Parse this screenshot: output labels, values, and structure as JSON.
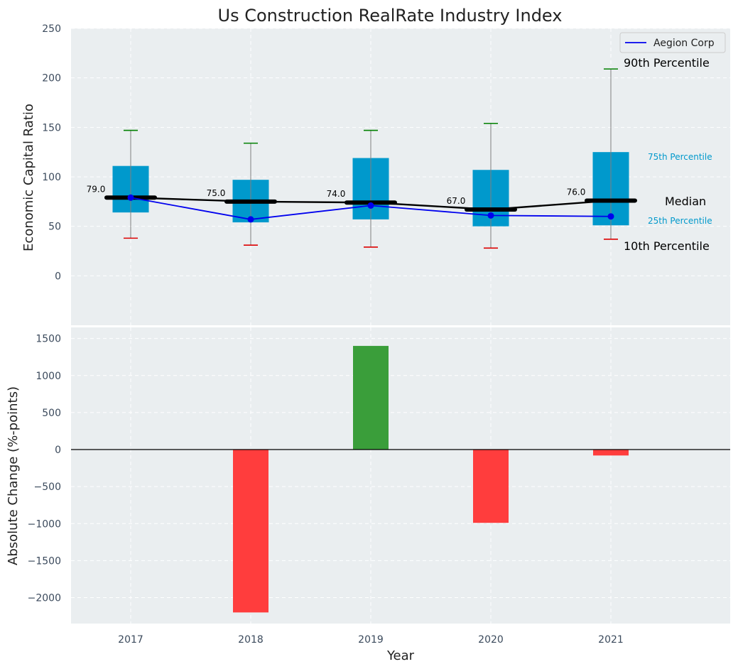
{
  "chart_data": [
    {
      "type": "box",
      "title": "Us Construction RealRate Industry Index",
      "ylabel": "Economic Capital Ratio",
      "ylim": [
        -50,
        250
      ],
      "yticks": [
        0,
        50,
        100,
        150,
        200,
        250
      ],
      "categories": [
        "2017",
        "2018",
        "2019",
        "2020",
        "2021"
      ],
      "boxes": [
        {
          "p10": 38,
          "p25": 64,
          "median": 79,
          "p75": 111,
          "p90": 147
        },
        {
          "p10": 31,
          "p25": 54,
          "median": 75,
          "p75": 97,
          "p90": 134
        },
        {
          "p10": 29,
          "p25": 57,
          "median": 74,
          "p75": 119,
          "p90": 147
        },
        {
          "p10": 28,
          "p25": 50,
          "median": 67,
          "p75": 107,
          "p90": 154
        },
        {
          "p10": 37,
          "p25": 51,
          "median": 76,
          "p75": 125,
          "p90": 209
        }
      ],
      "median_labels": [
        "79.0",
        "75.0",
        "74.0",
        "67.0",
        "76.0"
      ],
      "series": [
        {
          "name": "Aegion Corp",
          "values": [
            79,
            57,
            71,
            61,
            60
          ],
          "color": "#0000ee"
        }
      ],
      "annotations": {
        "p90": "90th Percentile",
        "p75": "75th Percentile",
        "median": "Median",
        "p25": "25th Percentile",
        "p10": "10th Percentile"
      },
      "legend": "top-right",
      "grid": true
    },
    {
      "type": "bar",
      "ylabel": "Absolute Change (%-points)",
      "xlabel": "Year",
      "categories": [
        "2017",
        "2018",
        "2019",
        "2020",
        "2021"
      ],
      "values": [
        null,
        -2200,
        1400,
        -990,
        -80
      ],
      "ylim": [
        -2350,
        1650
      ],
      "yticks": [
        -2000,
        -1500,
        -1000,
        -500,
        0,
        500,
        1000,
        1500
      ],
      "grid": true
    }
  ],
  "colors": {
    "box": "#0099cc",
    "whisker_top": "#008000",
    "whisker_bottom": "#dd0000",
    "median_line": "#000000",
    "positive": "#3a9e3a",
    "negative": "#ff3d3d",
    "panel_bg": "#eaeef0"
  }
}
